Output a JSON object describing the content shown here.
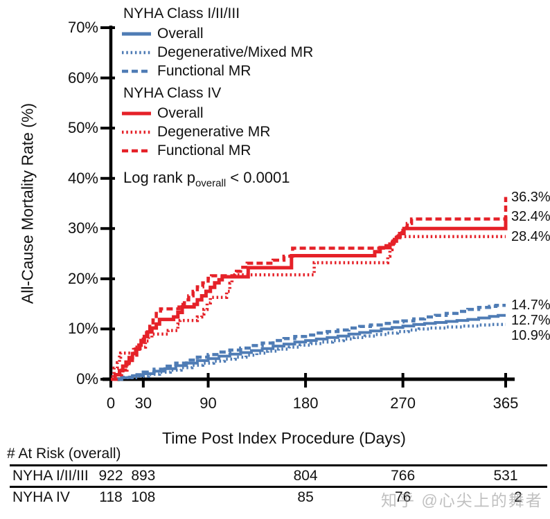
{
  "colors": {
    "blue": "#4f7cb5",
    "red": "#e52128",
    "axis": "#000000"
  },
  "chart_data": {
    "type": "line",
    "subtype": "kaplan-meier-step",
    "title": "",
    "xlabel": "Time Post Index Procedure (Days)",
    "ylabel": "All-Cause Mortality Rate (%)",
    "xlim": [
      0,
      365
    ],
    "ylim": [
      0,
      70
    ],
    "grid": false,
    "x_ticks": [
      {
        "value": 0,
        "label": "0"
      },
      {
        "value": 30,
        "label": "30"
      },
      {
        "value": 90,
        "label": "90"
      },
      {
        "value": 180,
        "label": "180"
      },
      {
        "value": 270,
        "label": "270"
      },
      {
        "value": 365,
        "label": "365"
      }
    ],
    "y_ticks": [
      {
        "value": 0,
        "label": "0%"
      },
      {
        "value": 10,
        "label": "10%"
      },
      {
        "value": 20,
        "label": "20%"
      },
      {
        "value": 30,
        "label": "30%"
      },
      {
        "value": 40,
        "label": "40%"
      },
      {
        "value": 50,
        "label": "50%"
      },
      {
        "value": 60,
        "label": "60%"
      },
      {
        "value": 70,
        "label": "70%"
      }
    ],
    "series": [
      {
        "name": "NYHA Class I/II/III Degenerative/Mixed MR",
        "group": "NYHA Class I/II/III",
        "color_key": "blue",
        "style": "dotted",
        "final_value_pct": 10.9,
        "points": [
          [
            0,
            0
          ],
          [
            12,
            0.3
          ],
          [
            25,
            0.6
          ],
          [
            35,
            1
          ],
          [
            45,
            1.4
          ],
          [
            55,
            1.8
          ],
          [
            65,
            2.3
          ],
          [
            75,
            2.8
          ],
          [
            85,
            3.2
          ],
          [
            95,
            3.6
          ],
          [
            105,
            4
          ],
          [
            115,
            4.4
          ],
          [
            125,
            4.8
          ],
          [
            135,
            5.2
          ],
          [
            145,
            5.6
          ],
          [
            155,
            6
          ],
          [
            165,
            6.4
          ],
          [
            175,
            6.8
          ],
          [
            185,
            7.1
          ],
          [
            195,
            7.4
          ],
          [
            205,
            7.7
          ],
          [
            215,
            8
          ],
          [
            225,
            8.3
          ],
          [
            235,
            8.6
          ],
          [
            245,
            8.9
          ],
          [
            255,
            9.2
          ],
          [
            265,
            9.5
          ],
          [
            275,
            9.8
          ],
          [
            285,
            10
          ],
          [
            295,
            10.2
          ],
          [
            310,
            10.4
          ],
          [
            325,
            10.6
          ],
          [
            340,
            10.8
          ],
          [
            352,
            10.9
          ],
          [
            365,
            10.9
          ]
        ]
      },
      {
        "name": "NYHA Class I/II/III Functional MR",
        "group": "NYHA Class I/II/III",
        "color_key": "blue",
        "style": "dashed",
        "final_value_pct": 14.7,
        "points": [
          [
            0,
            0
          ],
          [
            10,
            0.4
          ],
          [
            20,
            0.9
          ],
          [
            30,
            1.4
          ],
          [
            40,
            2
          ],
          [
            50,
            2.6
          ],
          [
            60,
            3.2
          ],
          [
            70,
            3.8
          ],
          [
            80,
            4.4
          ],
          [
            90,
            4.9
          ],
          [
            100,
            5.4
          ],
          [
            110,
            5.8
          ],
          [
            120,
            6.2
          ],
          [
            130,
            6.7
          ],
          [
            140,
            7.2
          ],
          [
            150,
            7.7
          ],
          [
            160,
            8.1
          ],
          [
            170,
            8.5
          ],
          [
            180,
            8.8
          ],
          [
            190,
            9.2
          ],
          [
            200,
            9.5
          ],
          [
            210,
            9.8
          ],
          [
            220,
            10.2
          ],
          [
            230,
            10.5
          ],
          [
            240,
            10.8
          ],
          [
            250,
            11.1
          ],
          [
            260,
            11.4
          ],
          [
            270,
            11.6
          ],
          [
            280,
            12
          ],
          [
            290,
            12.4
          ],
          [
            300,
            12.7
          ],
          [
            310,
            13.1
          ],
          [
            320,
            13.5
          ],
          [
            330,
            13.9
          ],
          [
            340,
            14.3
          ],
          [
            350,
            14.5
          ],
          [
            356,
            14.7
          ],
          [
            365,
            14.7
          ]
        ]
      },
      {
        "name": "NYHA Class I/II/III Overall",
        "group": "NYHA Class I/II/III",
        "color_key": "blue",
        "style": "solid",
        "final_value_pct": 12.7,
        "points": [
          [
            0,
            0
          ],
          [
            10,
            0.3
          ],
          [
            20,
            0.7
          ],
          [
            30,
            1.1
          ],
          [
            40,
            1.6
          ],
          [
            50,
            2.1
          ],
          [
            60,
            2.7
          ],
          [
            70,
            3.2
          ],
          [
            80,
            3.7
          ],
          [
            90,
            4.1
          ],
          [
            100,
            4.6
          ],
          [
            110,
            5
          ],
          [
            120,
            5.3
          ],
          [
            130,
            5.7
          ],
          [
            140,
            6.1
          ],
          [
            150,
            6.6
          ],
          [
            160,
            7
          ],
          [
            170,
            7.4
          ],
          [
            180,
            7.7
          ],
          [
            190,
            8
          ],
          [
            200,
            8.3
          ],
          [
            210,
            8.6
          ],
          [
            220,
            9
          ],
          [
            230,
            9.3
          ],
          [
            240,
            9.6
          ],
          [
            250,
            10
          ],
          [
            260,
            10.3
          ],
          [
            270,
            10.6
          ],
          [
            280,
            10.9
          ],
          [
            290,
            11.1
          ],
          [
            300,
            11.3
          ],
          [
            310,
            11.5
          ],
          [
            320,
            11.7
          ],
          [
            330,
            11.9
          ],
          [
            340,
            12.2
          ],
          [
            350,
            12.5
          ],
          [
            358,
            12.7
          ],
          [
            365,
            12.7
          ]
        ]
      },
      {
        "name": "NYHA Class IV Degenerative MR",
        "group": "NYHA Class IV",
        "color_key": "red",
        "style": "dotted",
        "final_value_pct": 28.4,
        "points": [
          [
            0,
            0
          ],
          [
            2,
            1.1
          ],
          [
            3,
            2.2
          ],
          [
            6,
            3.3
          ],
          [
            8,
            4.4
          ],
          [
            9,
            5.2
          ],
          [
            21,
            6.4
          ],
          [
            32,
            7.6
          ],
          [
            35,
            8.3
          ],
          [
            38,
            9
          ],
          [
            53,
            9.7
          ],
          [
            62,
            11
          ],
          [
            64,
            11.7
          ],
          [
            80,
            12.4
          ],
          [
            84,
            13
          ],
          [
            86,
            13.9
          ],
          [
            89,
            15.2
          ],
          [
            92,
            16.3
          ],
          [
            107,
            17.5
          ],
          [
            110,
            19.1
          ],
          [
            112,
            20.8
          ],
          [
            188,
            23.2
          ],
          [
            256,
            24.5
          ],
          [
            258,
            25.8
          ],
          [
            260,
            27.1
          ],
          [
            262,
            28.4
          ],
          [
            365,
            28.4
          ]
        ]
      },
      {
        "name": "NYHA Class IV Functional MR",
        "group": "NYHA Class IV",
        "color_key": "red",
        "style": "dashed",
        "final_value_pct": 36.3,
        "points": [
          [
            0,
            0
          ],
          [
            5,
            0.9
          ],
          [
            10,
            1.8
          ],
          [
            15,
            3.1
          ],
          [
            20,
            4.4
          ],
          [
            24,
            5.7
          ],
          [
            27,
            7
          ],
          [
            30,
            8.3
          ],
          [
            33,
            9.6
          ],
          [
            36,
            10.9
          ],
          [
            39,
            11.8
          ],
          [
            42,
            13.1
          ],
          [
            46,
            14
          ],
          [
            63,
            14.9
          ],
          [
            68,
            15.8
          ],
          [
            72,
            16.6
          ],
          [
            76,
            17.5
          ],
          [
            80,
            18.4
          ],
          [
            85,
            19.2
          ],
          [
            90,
            20.1
          ],
          [
            93,
            20.6
          ],
          [
            116,
            21.5
          ],
          [
            120,
            22.3
          ],
          [
            126,
            23.1
          ],
          [
            150,
            23.7
          ],
          [
            160,
            24.5
          ],
          [
            168,
            26.1
          ],
          [
            252,
            26.6
          ],
          [
            258,
            27.3
          ],
          [
            262,
            28.2
          ],
          [
            266,
            29.2
          ],
          [
            270,
            30.2
          ],
          [
            274,
            31
          ],
          [
            278,
            31.9
          ],
          [
            365,
            36.3
          ]
        ]
      },
      {
        "name": "NYHA Class IV Overall",
        "group": "NYHA Class IV",
        "color_key": "red",
        "style": "solid",
        "final_value_pct": 32.4,
        "points": [
          [
            0,
            0
          ],
          [
            4,
            0.9
          ],
          [
            8,
            1.7
          ],
          [
            11,
            2.6
          ],
          [
            14,
            3.4
          ],
          [
            17,
            4.3
          ],
          [
            20,
            5.1
          ],
          [
            23,
            6
          ],
          [
            26,
            6.8
          ],
          [
            28,
            7.7
          ],
          [
            31,
            8.5
          ],
          [
            34,
            9.4
          ],
          [
            38,
            10.2
          ],
          [
            42,
            11
          ],
          [
            45,
            11.9
          ],
          [
            58,
            12.4
          ],
          [
            62,
            13.3
          ],
          [
            66,
            14.4
          ],
          [
            77,
            14.9
          ],
          [
            80,
            15.8
          ],
          [
            84,
            16.6
          ],
          [
            88,
            17.5
          ],
          [
            92,
            18.3
          ],
          [
            96,
            19.2
          ],
          [
            100,
            19.8
          ],
          [
            103,
            20.4
          ],
          [
            127,
            22.2
          ],
          [
            167,
            24.6
          ],
          [
            244,
            25.4
          ],
          [
            249,
            26.2
          ],
          [
            258,
            26.9
          ],
          [
            261,
            27.5
          ],
          [
            264,
            28.2
          ],
          [
            267,
            29
          ],
          [
            271,
            30
          ],
          [
            365,
            32.4
          ]
        ]
      }
    ],
    "end_labels": [
      {
        "text": "36.3%",
        "value": 36.3
      },
      {
        "text": "32.4%",
        "value": 32.4
      },
      {
        "text": "28.4%",
        "value": 28.4
      },
      {
        "text": "14.7%",
        "value": 14.7
      },
      {
        "text": "12.7%",
        "value": 12.7
      },
      {
        "text": "10.9%",
        "value": 10.9
      }
    ]
  },
  "legend": {
    "groups": [
      {
        "title": "NYHA Class I/II/III",
        "color_key": "blue",
        "items": [
          {
            "label": "Overall",
            "style": "solid"
          },
          {
            "label": "Degenerative/Mixed MR",
            "style": "dotted"
          },
          {
            "label": "Functional MR",
            "style": "dashed"
          }
        ]
      },
      {
        "title": "NYHA Class IV",
        "color_key": "red",
        "items": [
          {
            "label": "Overall",
            "style": "solid"
          },
          {
            "label": "Degenerative MR",
            "style": "dotted"
          },
          {
            "label": "Functional MR",
            "style": "dashed"
          }
        ]
      }
    ]
  },
  "logrank": {
    "prefix": "Log rank p",
    "sub": "overall",
    "suffix": " < 0.0001"
  },
  "at_risk": {
    "header": "# At Risk (overall)",
    "rows": [
      {
        "label": "NYHA I/II/III",
        "values": [
          {
            "day": 0,
            "n": "922"
          },
          {
            "day": 30,
            "n": "893"
          },
          {
            "day": 180,
            "n": "804"
          },
          {
            "day": 270,
            "n": "766"
          },
          {
            "day": 365,
            "n": "531"
          }
        ]
      },
      {
        "label": "NYHA IV",
        "values": [
          {
            "day": 0,
            "n": "118"
          },
          {
            "day": 30,
            "n": "108"
          },
          {
            "day": 180,
            "n": "85"
          },
          {
            "day": 270,
            "n": "76"
          },
          {
            "day": 365,
            "n": "2",
            "dx": 18
          }
        ]
      }
    ]
  },
  "watermark": "知乎 @心尖上的舞者"
}
